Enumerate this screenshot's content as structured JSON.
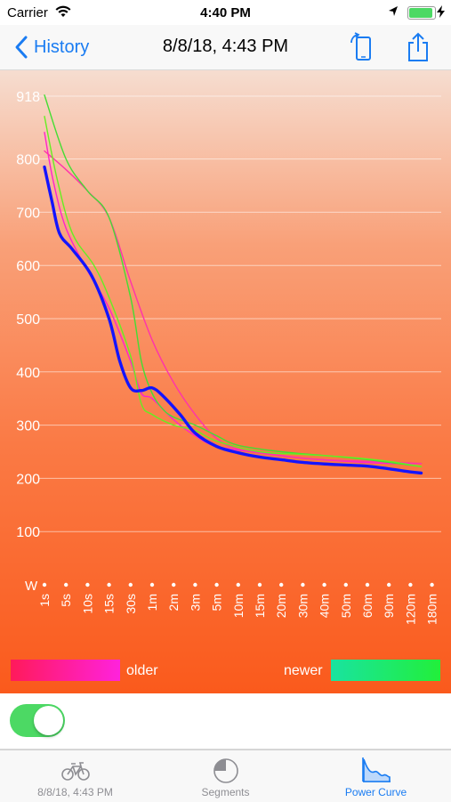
{
  "status_bar": {
    "carrier": "Carrier",
    "time": "4:40 PM",
    "battery_level": 1.0
  },
  "nav": {
    "back_label": "History",
    "title": "8/8/18, 4:43 PM"
  },
  "chart_data": {
    "type": "line",
    "title": "",
    "xlabel": "",
    "ylabel": "W",
    "x": [
      "1s",
      "5s",
      "10s",
      "15s",
      "30s",
      "1m",
      "2m",
      "3m",
      "5m",
      "10m",
      "15m",
      "20m",
      "30m",
      "40m",
      "50m",
      "60m",
      "90m",
      "120m",
      "180m"
    ],
    "y_ticks": [
      100,
      200,
      300,
      400,
      500,
      600,
      700,
      800
    ],
    "y_max_label": "918",
    "ylim": [
      0,
      918
    ],
    "grid": true,
    "series": [
      {
        "role": "current",
        "color": "#1414ff",
        "points": [
          [
            0,
            785
          ],
          [
            0.35,
            720
          ],
          [
            0.7,
            660
          ],
          [
            1.3,
            630
          ],
          [
            2.2,
            580
          ],
          [
            3,
            500
          ],
          [
            3.5,
            420
          ],
          [
            4,
            370
          ],
          [
            4.5,
            365
          ],
          [
            5,
            370
          ],
          [
            5.5,
            355
          ],
          [
            6.3,
            320
          ],
          [
            7,
            285
          ],
          [
            8,
            260
          ],
          [
            9,
            248
          ],
          [
            10,
            240
          ],
          [
            11,
            235
          ],
          [
            12,
            230
          ],
          [
            13,
            227
          ],
          [
            14,
            225
          ],
          [
            15,
            223
          ],
          [
            16,
            218
          ],
          [
            17,
            212
          ],
          [
            17.5,
            210
          ]
        ]
      },
      {
        "role": "older",
        "color": "#ff22cc",
        "points": [
          [
            0,
            850
          ],
          [
            0.4,
            760
          ],
          [
            1,
            670
          ],
          [
            2,
            590
          ],
          [
            3,
            520
          ],
          [
            4,
            420
          ],
          [
            4.5,
            360
          ],
          [
            5,
            350
          ],
          [
            6,
            310
          ],
          [
            7,
            280
          ],
          [
            8,
            260
          ],
          [
            10,
            248
          ],
          [
            12,
            238
          ],
          [
            14,
            232
          ],
          [
            16,
            228
          ],
          [
            17.5,
            228
          ]
        ]
      },
      {
        "role": "older",
        "color": "#ff33aa",
        "points": [
          [
            0,
            815
          ],
          [
            1,
            780
          ],
          [
            2,
            740
          ],
          [
            3,
            690
          ],
          [
            4,
            570
          ],
          [
            5,
            460
          ],
          [
            6,
            380
          ],
          [
            7,
            320
          ],
          [
            8,
            275
          ],
          [
            9,
            255
          ],
          [
            11,
            242
          ],
          [
            13,
            235
          ],
          [
            15,
            232
          ],
          [
            17.5,
            228
          ]
        ]
      },
      {
        "role": "newer",
        "color": "#44dd33",
        "points": [
          [
            0,
            920
          ],
          [
            1,
            800
          ],
          [
            2,
            740
          ],
          [
            3,
            690
          ],
          [
            4,
            540
          ],
          [
            4.5,
            420
          ],
          [
            5,
            360
          ],
          [
            5.5,
            330
          ],
          [
            6,
            315
          ],
          [
            7,
            300
          ],
          [
            8,
            280
          ],
          [
            9,
            262
          ],
          [
            11,
            250
          ],
          [
            13,
            243
          ],
          [
            15,
            235
          ],
          [
            17.5,
            222
          ]
        ]
      },
      {
        "role": "newer",
        "color": "#66ee22",
        "points": [
          [
            0,
            880
          ],
          [
            0.6,
            760
          ],
          [
            1.3,
            660
          ],
          [
            2.3,
            600
          ],
          [
            3,
            540
          ],
          [
            4,
            430
          ],
          [
            4.5,
            340
          ],
          [
            5,
            320
          ],
          [
            6,
            300
          ],
          [
            7,
            290
          ],
          [
            8,
            270
          ],
          [
            10,
            250
          ],
          [
            12,
            245
          ],
          [
            14,
            240
          ],
          [
            16,
            232
          ],
          [
            17.5,
            222
          ]
        ]
      }
    ]
  },
  "legend": {
    "older_label": "older",
    "newer_label": "newer",
    "older_colors": [
      "#ff1a5a",
      "#ff22dd"
    ],
    "newer_colors": [
      "#19e3a0",
      "#22ef3a"
    ]
  },
  "toggle": {
    "on": true
  },
  "tabs": [
    {
      "label": "8/8/18, 4:43 PM",
      "icon": "bicycle-icon",
      "active": false
    },
    {
      "label": "Segments",
      "icon": "segments-pie-icon",
      "active": false
    },
    {
      "label": "Power Curve",
      "icon": "power-curve-icon",
      "active": true
    }
  ]
}
